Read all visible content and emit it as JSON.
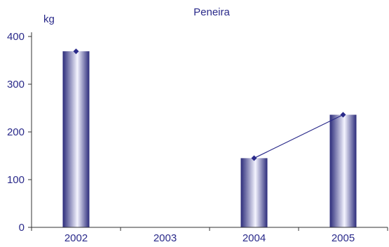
{
  "chart_data": {
    "type": "bar",
    "title": "Peneira",
    "ylabel": "kg",
    "xlabel": "",
    "categories": [
      "2002",
      "2003",
      "2004",
      "2005"
    ],
    "values": [
      369,
      null,
      145,
      236
    ],
    "ylim": [
      0,
      400
    ],
    "yticks": [
      0,
      100,
      200,
      300,
      400
    ],
    "overlay_line": {
      "type": "line",
      "values": [
        369,
        null,
        145,
        236
      ],
      "marker": "diamond",
      "connect_gaps": false
    },
    "grid": false,
    "legend": "none",
    "colors": {
      "bar_dark": "#2b2b7a",
      "bar_light": "#f4f4ff",
      "line": "#2a2a8a",
      "marker": "#2a2a8a",
      "text": "#2a2a8a",
      "axis": "#333333"
    }
  }
}
